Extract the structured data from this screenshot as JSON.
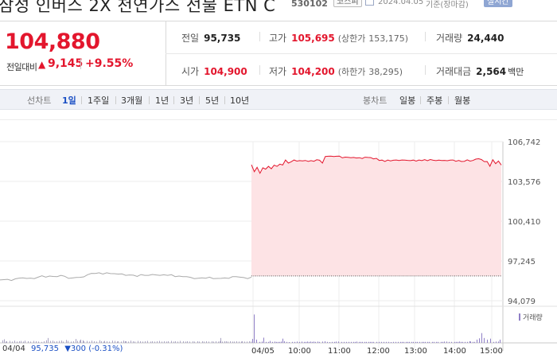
{
  "header": {
    "name": "삼성 인버스 2X 천연가스 선물 ETN C",
    "code": "530102",
    "market": "코스피",
    "date": "2024.04.05",
    "basis": "기준(장마감)",
    "realtime": "실시간"
  },
  "quote": {
    "price": "104,880",
    "change_label": "전일대비",
    "change_arrow": "▲",
    "change_value": "9,145",
    "change_rate": "+9.55%",
    "prev_close": {
      "label": "전일",
      "value": "95,735"
    },
    "open": {
      "label": "시가",
      "value": "104,900"
    },
    "high": {
      "label": "고가",
      "value": "105,695",
      "limit_label": "(상한가",
      "limit_value": "153,175)"
    },
    "low": {
      "label": "저가",
      "value": "104,200",
      "limit_label": "(하한가",
      "limit_value": "38,295)"
    },
    "volume": {
      "label": "거래량",
      "value": "24,440"
    },
    "amount": {
      "label": "거래대금",
      "value": "2,564",
      "unit": "백만"
    }
  },
  "periods": {
    "line_label": "선차트",
    "line_items": [
      "1일",
      "1주일",
      "3개월",
      "1년",
      "3년",
      "5년",
      "10년"
    ],
    "active": "1일",
    "candle_label": "봉차트",
    "candle_items": [
      "일봉",
      "주봉",
      "월봉"
    ]
  },
  "colors": {
    "up": "#e3162d",
    "down": "#1a4fc4",
    "active": "#1a4fc4",
    "prev_day_line": "#aaaaaa",
    "fill": "#fde3e5",
    "volume_bar": "#8f7fc6"
  },
  "prev_day_summary": {
    "date": "04/04",
    "price": "95,735",
    "arrow": "▼",
    "change": "300",
    "rate": "(-0.31%)"
  },
  "chart_data": {
    "type": "line",
    "y_ticks": [
      "106,742",
      "103,576",
      "100,410",
      "97,245",
      "94,079"
    ],
    "ylim": [
      94079,
      106742
    ],
    "x_ticks": [
      "04/05",
      "10:00",
      "11:00",
      "12:00",
      "13:00",
      "14:00",
      "15:00"
    ],
    "volume_label": "거래량",
    "prev_close_level": 96050,
    "series": [
      {
        "values": [
          95730,
          95760,
          95780,
          95690,
          95820,
          95880,
          95900,
          95850,
          95880,
          95840,
          95950,
          96060,
          95950,
          96040,
          96010,
          96000,
          96100,
          96020,
          95860,
          95890,
          95930,
          95940,
          95980,
          96150,
          96260,
          96250,
          96300,
          96200,
          96300,
          96240,
          96230,
          96200,
          96210,
          96100,
          96130,
          96110,
          96010,
          96160,
          96100,
          96100,
          96170,
          96130,
          96100,
          96140,
          96100,
          96150,
          96000,
          96040,
          96000,
          95990,
          95940,
          95840,
          95870,
          95900,
          95870,
          95950,
          95840,
          95850,
          95860,
          95890,
          95860,
          95990,
          95990,
          95950,
          95920,
          95840,
          95960
        ]
      },
      {
        "values": [
          104900,
          104350,
          104700,
          104220,
          104660,
          104550,
          104770,
          104580,
          104870,
          104770,
          104950,
          104880,
          105280,
          105030,
          105140,
          105280,
          105190,
          105230,
          105210,
          105240,
          105170,
          105230,
          105180,
          105300,
          105260,
          105030,
          105560,
          105580,
          105590,
          105560,
          105580,
          105590,
          105450,
          105510,
          105490,
          105460,
          105480,
          105440,
          105460,
          105400,
          105500,
          105480,
          105470,
          105370,
          105410,
          105240,
          105270,
          105160,
          105270,
          105210,
          105260,
          105280,
          105240,
          105280,
          105270,
          105250,
          105230,
          105270,
          105190,
          105280,
          105230,
          105310,
          105220,
          105320,
          105260,
          105230,
          105270,
          105240,
          105250,
          105220,
          105270,
          105280,
          105180,
          105250,
          105160,
          105180,
          105290,
          105190,
          105240,
          105350,
          105380,
          105320,
          105150,
          105160,
          104780,
          105300,
          104990,
          105200,
          104880
        ]
      }
    ],
    "volume_y_max": 100,
    "volume": [
      [
        3,
        8
      ],
      [
        5,
        11
      ],
      [
        7,
        4
      ],
      [
        8,
        5
      ],
      [
        12,
        6
      ],
      [
        15,
        4
      ],
      [
        18,
        7
      ],
      [
        21,
        4
      ],
      [
        24,
        5
      ],
      [
        26,
        6
      ],
      [
        29,
        4
      ],
      [
        31,
        7
      ],
      [
        35,
        5
      ],
      [
        38,
        4
      ],
      [
        42,
        6
      ],
      [
        45,
        5
      ],
      [
        48,
        4
      ],
      [
        52,
        3
      ],
      [
        55,
        5
      ],
      [
        58,
        8
      ],
      [
        60,
        15
      ],
      [
        63,
        6
      ],
      [
        66,
        7
      ],
      [
        68,
        4
      ],
      [
        71,
        5
      ],
      [
        74,
        6
      ],
      [
        77,
        7
      ],
      [
        79,
        4
      ],
      [
        83,
        9
      ],
      [
        85,
        6
      ],
      [
        89,
        4
      ],
      [
        92,
        5
      ],
      [
        95,
        12
      ],
      [
        97,
        6
      ],
      [
        100,
        7
      ],
      [
        101,
        10
      ],
      [
        104,
        8
      ],
      [
        105,
        5
      ],
      [
        109,
        6
      ],
      [
        112,
        4
      ],
      [
        115,
        7
      ],
      [
        118,
        5
      ],
      [
        121,
        4
      ],
      [
        125,
        8
      ],
      [
        127,
        5
      ],
      [
        130,
        4
      ],
      [
        131,
        6
      ],
      [
        134,
        5
      ],
      [
        137,
        4
      ],
      [
        141,
        7
      ],
      [
        144,
        6
      ],
      [
        147,
        4
      ],
      [
        148,
        5
      ],
      [
        152,
        4
      ],
      [
        155,
        7
      ],
      [
        157,
        5
      ],
      [
        158,
        5
      ],
      [
        161,
        4
      ],
      [
        164,
        7
      ],
      [
        167,
        5
      ],
      [
        169,
        4
      ],
      [
        173,
        6
      ],
      [
        176,
        5
      ],
      [
        179,
        4
      ],
      [
        182,
        5
      ],
      [
        185,
        6
      ],
      [
        189,
        4
      ],
      [
        191,
        5
      ],
      [
        194,
        4
      ],
      [
        197,
        5
      ],
      [
        200,
        6
      ],
      [
        203,
        4
      ],
      [
        206,
        5
      ],
      [
        209,
        4
      ],
      [
        211,
        5
      ],
      [
        215,
        6
      ],
      [
        218,
        4
      ],
      [
        220,
        5
      ],
      [
        223,
        4
      ],
      [
        226,
        6
      ],
      [
        230,
        5
      ],
      [
        233,
        4
      ],
      [
        235,
        5
      ],
      [
        238,
        4
      ],
      [
        242,
        5
      ],
      [
        244,
        4
      ],
      [
        248,
        5
      ],
      [
        250,
        4
      ],
      [
        254,
        5
      ],
      [
        256,
        4
      ],
      [
        259,
        5
      ],
      [
        262,
        4
      ],
      [
        266,
        5
      ],
      [
        268,
        4
      ],
      [
        271,
        5
      ],
      [
        274,
        4
      ],
      [
        276,
        5
      ],
      [
        277,
        15
      ],
      [
        279,
        4
      ],
      [
        282,
        5
      ],
      [
        284,
        5
      ],
      [
        286,
        4
      ],
      [
        289,
        5
      ],
      [
        292,
        4
      ],
      [
        294,
        4
      ],
      [
        297,
        5
      ],
      [
        300,
        4
      ],
      [
        303,
        4
      ],
      [
        304,
        5
      ],
      [
        307,
        4
      ],
      [
        310,
        4
      ],
      [
        313,
        5
      ],
      [
        315,
        4
      ],
      [
        317,
        12
      ],
      [
        319,
        87
      ],
      [
        322,
        10
      ],
      [
        326,
        3
      ],
      [
        329,
        4
      ],
      [
        331,
        16
      ],
      [
        334,
        3
      ],
      [
        337,
        3
      ],
      [
        339,
        6
      ],
      [
        342,
        3
      ],
      [
        345,
        4
      ],
      [
        347,
        3
      ],
      [
        349,
        3
      ],
      [
        351,
        3
      ],
      [
        353,
        4
      ],
      [
        355,
        13
      ],
      [
        357,
        5
      ],
      [
        360,
        3
      ],
      [
        363,
        2
      ],
      [
        367,
        3
      ],
      [
        370,
        3
      ],
      [
        373,
        4
      ],
      [
        376,
        3
      ],
      [
        379,
        4
      ],
      [
        382,
        3
      ],
      [
        384,
        3
      ],
      [
        386,
        4
      ],
      [
        388,
        3
      ],
      [
        390,
        4
      ],
      [
        392,
        3
      ],
      [
        394,
        4
      ],
      [
        396,
        3
      ],
      [
        399,
        4
      ],
      [
        401,
        3
      ],
      [
        405,
        4
      ],
      [
        408,
        5
      ],
      [
        411,
        3
      ],
      [
        414,
        2
      ],
      [
        417,
        3
      ],
      [
        420,
        3
      ],
      [
        422,
        4
      ],
      [
        425,
        4
      ],
      [
        429,
        3
      ],
      [
        432,
        3
      ],
      [
        435,
        3
      ],
      [
        438,
        3
      ],
      [
        441,
        3
      ],
      [
        444,
        3
      ],
      [
        446,
        3
      ],
      [
        448,
        4
      ],
      [
        451,
        3
      ],
      [
        453,
        3
      ],
      [
        455,
        3
      ],
      [
        458,
        3
      ],
      [
        460,
        3
      ],
      [
        463,
        3
      ],
      [
        465,
        3
      ],
      [
        467,
        3
      ],
      [
        469,
        3
      ],
      [
        473,
        3
      ],
      [
        476,
        3
      ],
      [
        479,
        3
      ],
      [
        482,
        3
      ],
      [
        485,
        3
      ],
      [
        488,
        3
      ],
      [
        491,
        2
      ],
      [
        494,
        3
      ],
      [
        497,
        3
      ],
      [
        500,
        3
      ],
      [
        503,
        3
      ],
      [
        505,
        3
      ],
      [
        507,
        3
      ],
      [
        510,
        3
      ],
      [
        512,
        3
      ],
      [
        514,
        3
      ],
      [
        517,
        3
      ],
      [
        519,
        3
      ],
      [
        522,
        3
      ],
      [
        524,
        3
      ],
      [
        527,
        3
      ],
      [
        530,
        3
      ],
      [
        532,
        3
      ],
      [
        534,
        3
      ],
      [
        537,
        3
      ],
      [
        539,
        3
      ],
      [
        543,
        3
      ],
      [
        545,
        3
      ],
      [
        548,
        3
      ],
      [
        550,
        3
      ],
      [
        554,
        3
      ],
      [
        556,
        3
      ],
      [
        558,
        4
      ],
      [
        561,
        4
      ],
      [
        564,
        3
      ],
      [
        567,
        3
      ],
      [
        571,
        3
      ],
      [
        573,
        3
      ],
      [
        575,
        3
      ],
      [
        577,
        4
      ],
      [
        579,
        3
      ],
      [
        581,
        3
      ],
      [
        584,
        3
      ],
      [
        587,
        3
      ],
      [
        590,
        5
      ],
      [
        591,
        4
      ],
      [
        594,
        3
      ],
      [
        596,
        3
      ],
      [
        599,
        10
      ],
      [
        602,
        14
      ],
      [
        605,
        30
      ],
      [
        608,
        15
      ],
      [
        612,
        10
      ],
      [
        616,
        13
      ],
      [
        620,
        3
      ],
      [
        623,
        4
      ],
      [
        626,
        4
      ],
      [
        628,
        10
      ]
    ]
  }
}
